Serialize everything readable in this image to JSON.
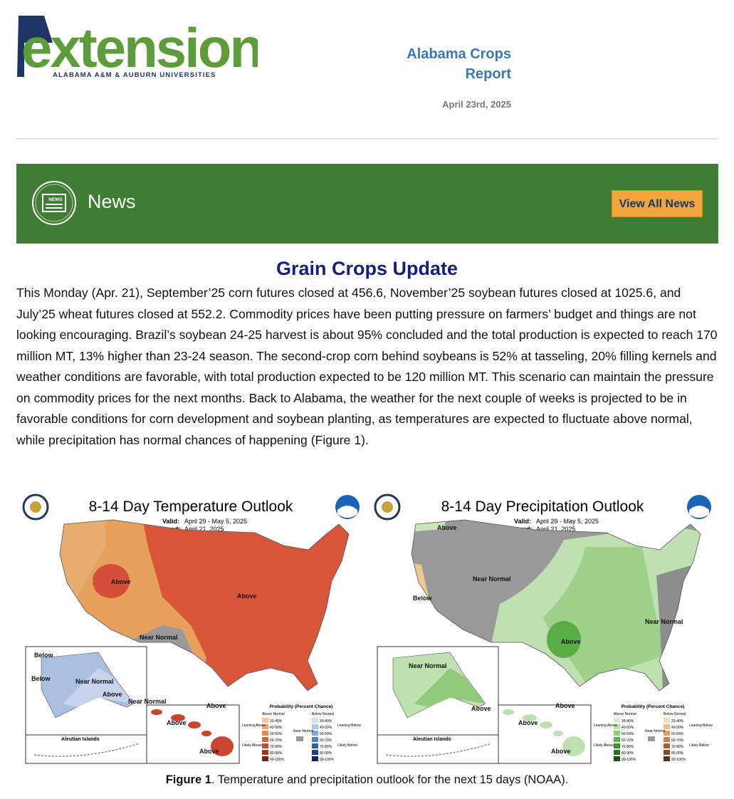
{
  "header": {
    "logo_text": "extension",
    "logo_subtitle": "ALABAMA A&M & AUBURN UNIVERSITIES",
    "title": "Alabama Crops Report",
    "date": "April 23rd, 2025"
  },
  "banner": {
    "icon_label": "NEWS",
    "title": "News",
    "button": "View All News"
  },
  "article": {
    "title": "Grain Crops Update",
    "body": "This Monday (Apr. 21), September’25 corn futures closed at 456.6, November’25 soybean futures closed at 1025.6, and July’25 wheat futures closed at 552.2. Commodity prices have been putting pressure on farmers’ budget and things are not looking encouraging. Brazil’s soybean 24-25 harvest is about 95% concluded and the total production is expected to reach 170 million MT, 13% higher than 23-24 season. The second-crop corn behind soybeans is 52% at tasseling, 20% filling kernels and weather conditions are favorable, with total production expected to be 120 million MT. This scenario can maintain the pressure on commodity prices for the next months. Back to Alabama, the weather for the next couple of weeks is projected to be in favorable conditions for corn development and soybean planting, as temperatures are expected to fluctuate above normal, while precipitation has normal chances of happening (Figure 1)."
  },
  "figure": {
    "maps": [
      {
        "title": "8-14 Day Temperature Outlook",
        "valid_label": "Valid:",
        "valid": "April 29 - May 5, 2025",
        "issued_label": "Issued:",
        "issued": "April 21, 2025",
        "labels": [
          "Above",
          "Above",
          "Near Normal",
          "Below",
          "Below",
          "Near Normal",
          "Above",
          "Near Normal",
          "Above",
          "Above",
          "Above"
        ]
      },
      {
        "title": "8-14 Day Precipitation Outlook",
        "valid_label": "Valid:",
        "valid": "April 29 - May 5, 2025",
        "issued_label": "Issued:",
        "issued": "April 21, 2025",
        "labels": [
          "Above",
          "Near Normal",
          "Below",
          "Above",
          "Near Normal",
          "Near Normal",
          "Above",
          "Above",
          "Above",
          "Above"
        ]
      }
    ],
    "aleutian": "Aleutian Islands",
    "legend": {
      "title": "Probability (Percent Chance)",
      "above_header": "Above Normal",
      "below_header": "Below Normal",
      "near": "Near Normal",
      "leaning_above": "Leaning Above",
      "likely_above": "Likely Above",
      "leaning_below": "Leaning Below",
      "likely_below": "Likely Below",
      "ranges": [
        "33-40%",
        "40-50%",
        "50-60%",
        "60-70%",
        "70-80%",
        "80-90%",
        "90-100%"
      ]
    },
    "caption_label": "Figure 1",
    "caption": ". Temperature and precipitation outlook for the next 15 days (NOAA)."
  }
}
